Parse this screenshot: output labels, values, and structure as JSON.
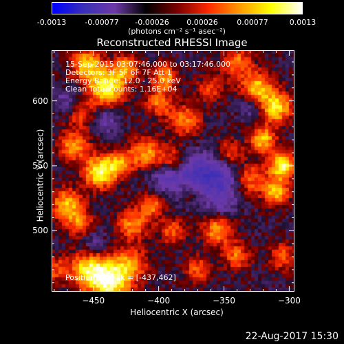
{
  "colorbar": {
    "ticks": [
      "-0.0013",
      "-0.00077",
      "-0.00026",
      "0.00026",
      "0.00077",
      "0.0013"
    ],
    "unit_label": "(photons cm⁻² s⁻¹ asec⁻²)",
    "range": [
      -0.0013,
      0.0013
    ],
    "colors": [
      "#0000ff",
      "#3b2fb8",
      "#6e3aa8",
      "#000000",
      "#7a0000",
      "#ff2a00",
      "#ff9a00",
      "#ffff00",
      "#ffffff"
    ]
  },
  "chart_data": {
    "type": "heatmap",
    "title": "Reconstructed RHESSI Image",
    "xlabel": "Heliocentric X (arcsec)",
    "ylabel": "Heliocentric Y (arcsec)",
    "xlim": [
      -482,
      -296
    ],
    "ylim": [
      453,
      639
    ],
    "xticks": [
      -450,
      -400,
      -350,
      -300
    ],
    "yticks": [
      500,
      550,
      600
    ],
    "xtick_labels": [
      "−450",
      "−400",
      "−350",
      "−300"
    ],
    "ytick_labels": [
      "500",
      "550",
      "600"
    ],
    "info_lines": [
      "15-Sep-2015 03:07:46.000 to 03:17:46.000",
      "Detectors: 3F 5F 6F 7F Att 1",
      "Energy Range: 12.0 - 25.0 keV",
      "Clean    Total counts: 1.16E+04"
    ],
    "peak_label": "Position of Peak = [-437,462]",
    "peak": [
      -437,
      462
    ],
    "grid": false
  },
  "footer": {
    "date": "22-Aug-2017 15:30"
  }
}
